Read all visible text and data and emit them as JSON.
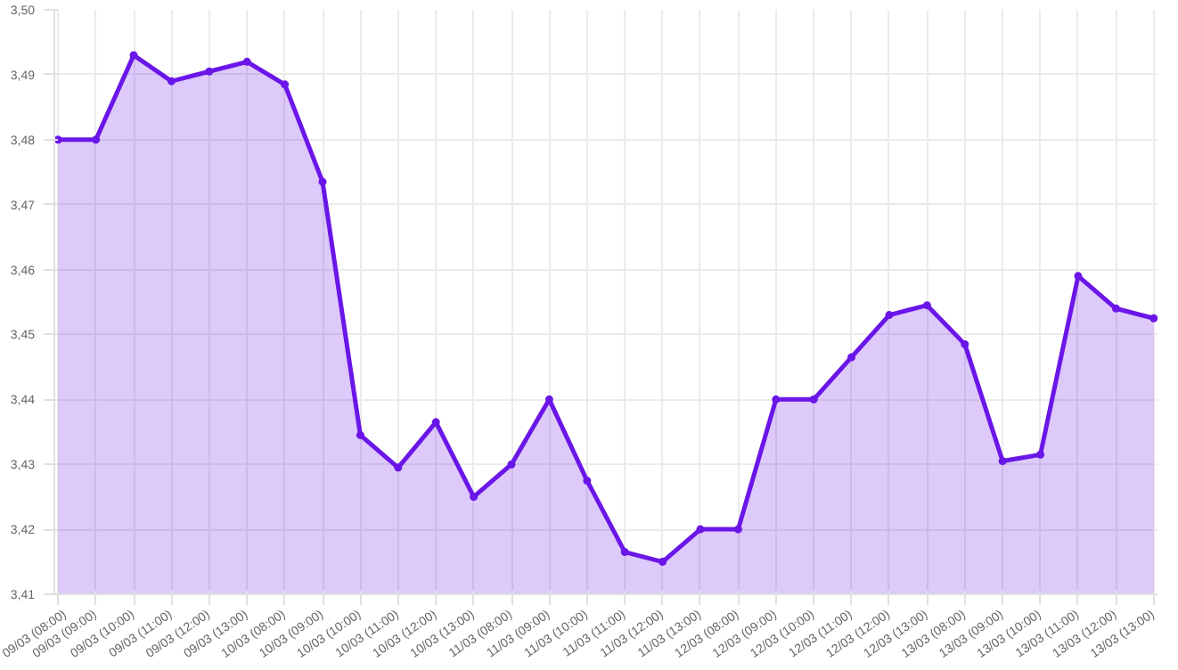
{
  "chart_data": {
    "type": "area",
    "categories": [
      "09/03 (08:00)",
      "09/03 (09:00)",
      "09/03 (10:00)",
      "09/03 (11:00)",
      "09/03 (12:00)",
      "09/03 (13:00)",
      "10/03 (08:00)",
      "10/03 (09:00)",
      "10/03 (10:00)",
      "10/03 (11:00)",
      "10/03 (12:00)",
      "10/03 (13:00)",
      "11/03 (08:00)",
      "11/03 (09:00)",
      "11/03 (10:00)",
      "11/03 (11:00)",
      "11/03 (12:00)",
      "11/03 (13:00)",
      "12/03 (08:00)",
      "12/03 (09:00)",
      "12/03 (10:00)",
      "12/03 (11:00)",
      "12/03 (12:00)",
      "12/03 (13:00)",
      "13/03 (08:00)",
      "13/03 (09:00)",
      "13/03 (10:00)",
      "13/03 (11:00)",
      "13/03 (12:00)",
      "13/03 (13:00)"
    ],
    "series": [
      {
        "color": "#6a16e8",
        "values": [
          3.48,
          3.48,
          3.493,
          3.489,
          3.4905,
          3.492,
          3.4885,
          3.4735,
          3.4345,
          3.4295,
          3.4365,
          3.425,
          3.43,
          3.44,
          3.4275,
          3.4165,
          3.415,
          3.42,
          3.42,
          3.44,
          3.44,
          3.4465,
          3.453,
          3.4545,
          3.4485,
          3.4305,
          3.4315,
          3.459,
          3.454,
          3.4525
        ]
      }
    ],
    "ylim": [
      3.41,
      3.5
    ],
    "yticks": [
      {
        "value": 3.41,
        "label": "3,41"
      },
      {
        "value": 3.42,
        "label": "3,42"
      },
      {
        "value": 3.43,
        "label": "3,43"
      },
      {
        "value": 3.44,
        "label": "3,44"
      },
      {
        "value": 3.45,
        "label": "3,45"
      },
      {
        "value": 3.46,
        "label": "3,46"
      },
      {
        "value": 3.47,
        "label": "3,47"
      },
      {
        "value": 3.48,
        "label": "3,48"
      },
      {
        "value": 3.49,
        "label": "3,49"
      },
      {
        "value": 3.5,
        "label": "3,50"
      }
    ],
    "grid": true,
    "marker": "circle",
    "line_style": "solid"
  }
}
